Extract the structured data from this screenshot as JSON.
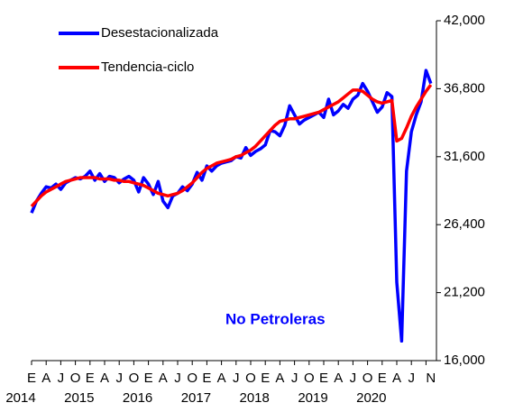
{
  "chart_data": {
    "type": "line",
    "annotation": "No Petroleras",
    "categories": [
      "E",
      null,
      null,
      "A",
      null,
      null,
      "J",
      null,
      null,
      "O",
      null,
      null,
      "E",
      null,
      null,
      "A",
      null,
      null,
      "J",
      null,
      null,
      "O",
      null,
      null,
      "E",
      null,
      null,
      "A",
      null,
      null,
      "J",
      null,
      null,
      "O",
      null,
      null,
      "E",
      null,
      null,
      "A",
      null,
      null,
      "J",
      null,
      null,
      "O",
      null,
      null,
      "E",
      null,
      null,
      "A",
      null,
      null,
      "J",
      null,
      null,
      "O",
      null,
      null,
      "E",
      null,
      null,
      "A",
      null,
      null,
      "J",
      null,
      null,
      "O",
      null,
      null,
      "E",
      null,
      null,
      "A",
      null,
      null,
      "J",
      null,
      null,
      null,
      "N"
    ],
    "year_categories": [
      "2014",
      null,
      null,
      null,
      null,
      null,
      null,
      null,
      null,
      null,
      null,
      null,
      "2015",
      null,
      null,
      null,
      null,
      null,
      null,
      null,
      null,
      null,
      null,
      null,
      "2016",
      null,
      null,
      null,
      null,
      null,
      null,
      null,
      null,
      null,
      null,
      null,
      "2017",
      null,
      null,
      null,
      null,
      null,
      null,
      null,
      null,
      null,
      null,
      null,
      "2018",
      null,
      null,
      null,
      null,
      null,
      null,
      null,
      null,
      null,
      null,
      null,
      "2019",
      null,
      null,
      null,
      null,
      null,
      null,
      null,
      null,
      null,
      null,
      null,
      "2020",
      null,
      null,
      null,
      null,
      null,
      null,
      null,
      null,
      null,
      null
    ],
    "series": [
      {
        "name": "Desestacionalizada",
        "color": "#0000ff",
        "values": [
          27300,
          28200,
          28800,
          29300,
          29200,
          29500,
          29100,
          29600,
          29800,
          30000,
          29900,
          30100,
          30500,
          29800,
          30300,
          29700,
          30100,
          30000,
          29600,
          29900,
          30100,
          29800,
          28900,
          30000,
          29500,
          28700,
          29700,
          28200,
          27700,
          28600,
          28800,
          29300,
          29000,
          29500,
          30400,
          29800,
          30900,
          30500,
          30900,
          31100,
          31200,
          31300,
          31600,
          31500,
          32300,
          31700,
          32000,
          32200,
          32500,
          33600,
          33500,
          33200,
          34000,
          35500,
          34800,
          34100,
          34400,
          34600,
          34800,
          35000,
          34600,
          36000,
          34800,
          35100,
          35600,
          35300,
          36000,
          36300,
          37200,
          36600,
          35800,
          35000,
          35400,
          36500,
          36200,
          22000,
          17500,
          30500,
          33500,
          34800,
          35800,
          38200,
          37200
        ]
      },
      {
        "name": "Tendencia-ciclo",
        "color": "#ff0000",
        "values": [
          27800,
          28200,
          28600,
          28900,
          29100,
          29300,
          29500,
          29700,
          29800,
          29900,
          30000,
          30000,
          30000,
          30000,
          29900,
          29900,
          29900,
          29800,
          29800,
          29700,
          29700,
          29600,
          29500,
          29400,
          29200,
          29000,
          28800,
          28700,
          28600,
          28700,
          28800,
          29000,
          29300,
          29600,
          30000,
          30400,
          30700,
          30900,
          31100,
          31200,
          31300,
          31400,
          31600,
          31700,
          31900,
          32100,
          32400,
          32800,
          33200,
          33600,
          34000,
          34300,
          34400,
          34500,
          34500,
          34600,
          34700,
          34800,
          34900,
          35000,
          35200,
          35400,
          35600,
          35800,
          36100,
          36400,
          36700,
          36700,
          36600,
          36300,
          36000,
          35800,
          35700,
          35800,
          35900,
          32800,
          33000,
          33800,
          34700,
          35400,
          36000,
          36600,
          37100
        ]
      }
    ],
    "ylim": [
      16000,
      42000
    ],
    "yticks": [
      {
        "value": 16000,
        "label": "16,000"
      },
      {
        "value": 21200,
        "label": "21,200"
      },
      {
        "value": 26400,
        "label": "26,400"
      },
      {
        "value": 31600,
        "label": "31,600"
      },
      {
        "value": 36800,
        "label": "36,800"
      },
      {
        "value": 42000,
        "label": "42,000"
      }
    ],
    "legend": "top-left"
  }
}
